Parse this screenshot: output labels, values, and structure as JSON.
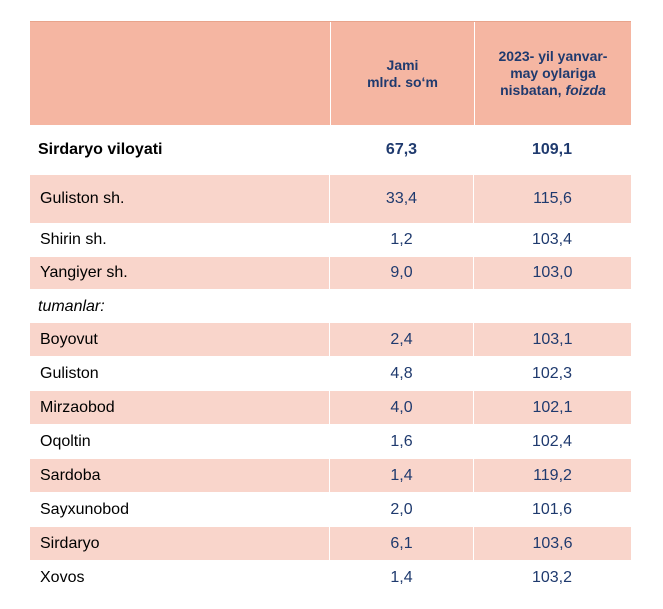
{
  "header": {
    "col_total": "Jami\nmlrd. so‘m",
    "col_percent_prefix": "2023- yil yanvar-\nmay oylariga\nnisbatan, ",
    "col_percent_italic": "foizda"
  },
  "region": {
    "name": "Sirdaryo viloyati",
    "total": "67,3",
    "percent": "109,1"
  },
  "cities": [
    {
      "name": "Guliston  sh.",
      "total": "33,4",
      "percent": "115,6"
    },
    {
      "name": "Shirin sh.",
      "total": "1,2",
      "percent": "103,4"
    },
    {
      "name": "Yangiyer sh.",
      "total": "9,0",
      "percent": "103,0"
    }
  ],
  "districts_label": "tumanlar:",
  "districts": [
    {
      "name": "Boyovut",
      "total": "2,4",
      "percent": "103,1"
    },
    {
      "name": "Guliston",
      "total": "4,8",
      "percent": "102,3"
    },
    {
      "name": "Mirzaobod",
      "total": "4,0",
      "percent": "102,1"
    },
    {
      "name": "Oqoltin",
      "total": "1,6",
      "percent": "102,4"
    },
    {
      "name": "Sardoba",
      "total": "1,4",
      "percent": "119,2"
    },
    {
      "name": "Sayxunobod",
      "total": "2,0",
      "percent": "101,6"
    },
    {
      "name": "Sirdaryo",
      "total": "6,1",
      "percent": "103,6"
    },
    {
      "name": "Xovos",
      "total": "1,4",
      "percent": "103,2"
    }
  ]
}
